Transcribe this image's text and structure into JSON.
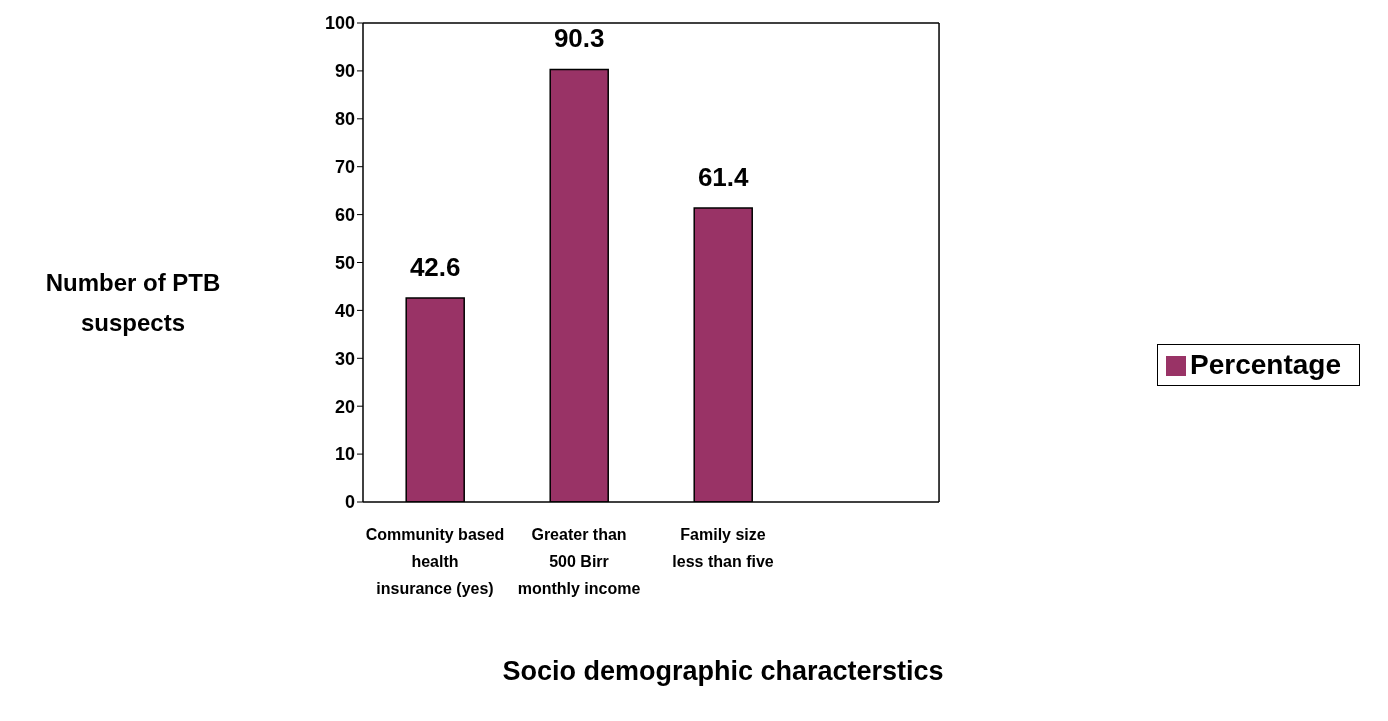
{
  "chart_data": {
    "type": "bar",
    "xlabel": "Socio demographic characterstics",
    "ylabel": "Number of PTB suspects",
    "categories": [
      "Community based health insurance (yes)",
      "Greater than 500 Birr monthly income",
      "Family size less than five",
      null
    ],
    "series": [
      {
        "name": "Percentage",
        "color": "#993366",
        "values": [
          42.6,
          90.3,
          61.4,
          null
        ]
      }
    ],
    "ylim": [
      0,
      100
    ],
    "yticks": [
      0,
      10,
      20,
      30,
      40,
      50,
      60,
      70,
      80,
      90,
      100
    ],
    "grid": false,
    "legend": "right",
    "data_labels": true
  }
}
